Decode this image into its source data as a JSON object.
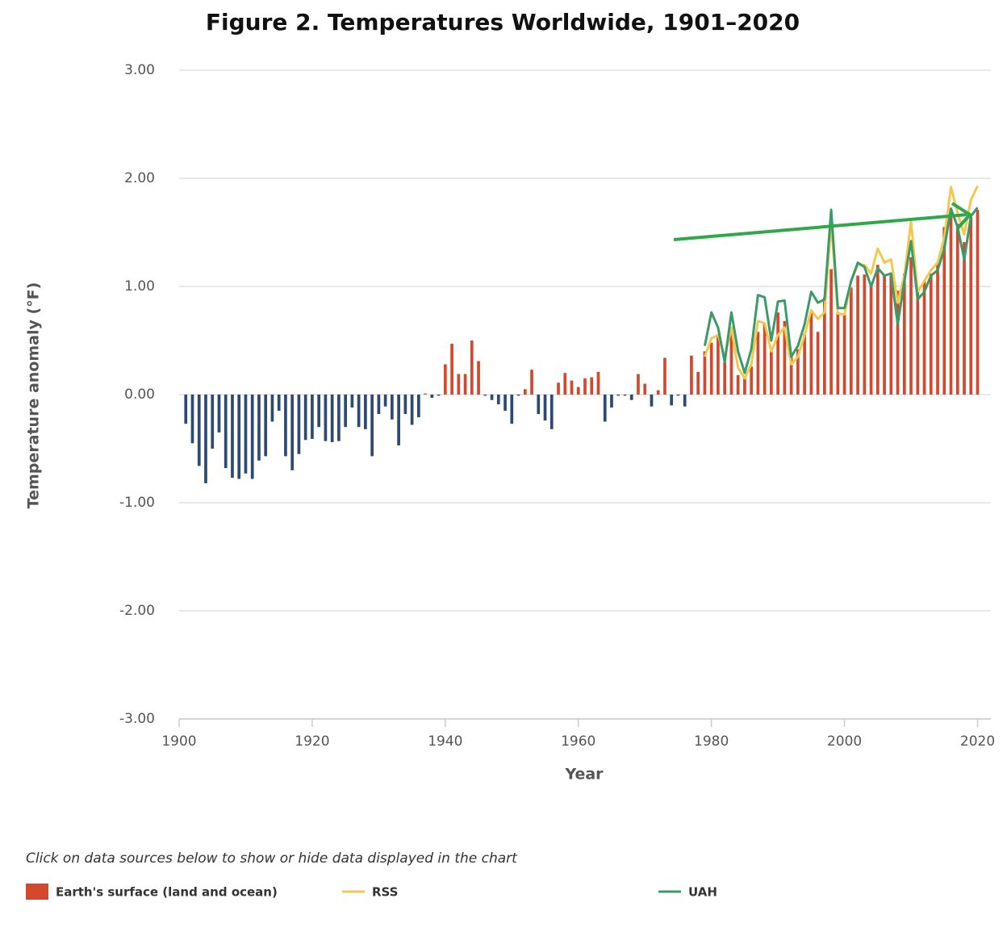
{
  "chart_data": {
    "type": "bar",
    "title": "Figure 2. Temperatures Worldwide, 1901–2020",
    "x_label": "Year",
    "y_label": "Temperature anomaly (°F)",
    "note": "Click on data sources below to show or hide data displayed in the chart",
    "xlim": [
      1900,
      2022
    ],
    "xticks": [
      1900,
      1920,
      1940,
      1960,
      1980,
      2000,
      2020
    ],
    "ylim": [
      -3,
      3
    ],
    "yticks": [
      {
        "value": -3,
        "label": "-3.00"
      },
      {
        "value": -2,
        "label": "-2.00"
      },
      {
        "value": -1,
        "label": "-1.00"
      },
      {
        "value": 0,
        "label": "0.00"
      },
      {
        "value": 1,
        "label": "1.00"
      },
      {
        "value": 2,
        "label": "2.00"
      },
      {
        "value": 3,
        "label": "3.00"
      }
    ],
    "grid": true,
    "legend": "bottom",
    "series": [
      {
        "name": "Earth's surface (land and ocean)",
        "type": "bar",
        "color": "#d4492e",
        "negative_color": "#2c4a73",
        "x": [
          1901,
          1902,
          1903,
          1904,
          1905,
          1906,
          1907,
          1908,
          1909,
          1910,
          1911,
          1912,
          1913,
          1914,
          1915,
          1916,
          1917,
          1918,
          1919,
          1920,
          1921,
          1922,
          1923,
          1924,
          1925,
          1926,
          1927,
          1928,
          1929,
          1930,
          1931,
          1932,
          1933,
          1934,
          1935,
          1936,
          1937,
          1938,
          1939,
          1940,
          1941,
          1942,
          1943,
          1944,
          1945,
          1946,
          1947,
          1948,
          1949,
          1950,
          1951,
          1952,
          1953,
          1954,
          1955,
          1956,
          1957,
          1958,
          1959,
          1960,
          1961,
          1962,
          1963,
          1964,
          1965,
          1966,
          1967,
          1968,
          1969,
          1970,
          1971,
          1972,
          1973,
          1974,
          1975,
          1976,
          1977,
          1978,
          1979,
          1980,
          1981,
          1982,
          1983,
          1984,
          1985,
          1986,
          1987,
          1988,
          1989,
          1990,
          1991,
          1992,
          1993,
          1994,
          1995,
          1996,
          1997,
          1998,
          1999,
          2000,
          2001,
          2002,
          2003,
          2004,
          2005,
          2006,
          2007,
          2008,
          2009,
          2010,
          2011,
          2012,
          2013,
          2014,
          2015,
          2016,
          2017,
          2018,
          2019,
          2020
        ],
        "values": [
          -0.27,
          -0.45,
          -0.66,
          -0.82,
          -0.5,
          -0.35,
          -0.68,
          -0.77,
          -0.78,
          -0.73,
          -0.78,
          -0.61,
          -0.57,
          -0.25,
          -0.15,
          -0.57,
          -0.7,
          -0.55,
          -0.42,
          -0.41,
          -0.3,
          -0.43,
          -0.44,
          -0.43,
          -0.3,
          -0.12,
          -0.3,
          -0.32,
          -0.57,
          -0.18,
          -0.11,
          -0.23,
          -0.47,
          -0.18,
          -0.28,
          -0.21,
          0.01,
          -0.03,
          -0.01,
          0.28,
          0.47,
          0.19,
          0.19,
          0.5,
          0.31,
          -0.01,
          -0.05,
          -0.09,
          -0.15,
          -0.27,
          -0.01,
          0.05,
          0.23,
          -0.18,
          -0.24,
          -0.32,
          0.11,
          0.2,
          0.13,
          0.07,
          0.15,
          0.16,
          0.21,
          -0.25,
          -0.12,
          -0.01,
          -0.01,
          -0.05,
          0.19,
          0.1,
          -0.11,
          0.04,
          0.34,
          -0.1,
          -0.01,
          -0.11,
          0.36,
          0.21,
          0.4,
          0.48,
          0.55,
          0.3,
          0.58,
          0.18,
          0.16,
          0.26,
          0.58,
          0.66,
          0.4,
          0.76,
          0.68,
          0.38,
          0.42,
          0.56,
          0.76,
          0.58,
          0.9,
          1.16,
          0.76,
          0.75,
          0.99,
          1.1,
          1.11,
          1.01,
          1.2,
          1.1,
          1.1,
          0.96,
          1.12,
          1.27,
          0.97,
          1.05,
          1.12,
          1.22,
          1.55,
          1.72,
          1.58,
          1.41,
          1.64,
          1.71
        ]
      },
      {
        "name": "RSS",
        "type": "line",
        "color": "#f2c94c",
        "x": [
          1979,
          1980,
          1981,
          1982,
          1983,
          1984,
          1985,
          1986,
          1987,
          1988,
          1989,
          1990,
          1991,
          1992,
          1993,
          1994,
          1995,
          1996,
          1997,
          1998,
          1999,
          2000,
          2001,
          2002,
          2003,
          2004,
          2005,
          2006,
          2007,
          2008,
          2009,
          2010,
          2011,
          2012,
          2013,
          2014,
          2015,
          2016,
          2017,
          2018,
          2019,
          2020
        ],
        "values": [
          0.35,
          0.52,
          0.55,
          0.35,
          0.62,
          0.25,
          0.15,
          0.28,
          0.68,
          0.66,
          0.4,
          0.55,
          0.62,
          0.28,
          0.35,
          0.55,
          0.78,
          0.7,
          0.76,
          1.6,
          0.75,
          0.74,
          1.05,
          1.2,
          1.2,
          1.12,
          1.35,
          1.22,
          1.25,
          0.85,
          1.1,
          1.6,
          0.95,
          1.05,
          1.15,
          1.22,
          1.45,
          1.92,
          1.68,
          1.48,
          1.8,
          1.93
        ]
      },
      {
        "name": "UAH",
        "type": "line",
        "color": "#3a9a6a",
        "x": [
          1979,
          1980,
          1981,
          1982,
          1983,
          1984,
          1985,
          1986,
          1987,
          1988,
          1989,
          1990,
          1991,
          1992,
          1993,
          1994,
          1995,
          1996,
          1997,
          1998,
          1999,
          2000,
          2001,
          2002,
          2003,
          2004,
          2005,
          2006,
          2007,
          2008,
          2009,
          2010,
          2011,
          2012,
          2013,
          2014,
          2015,
          2016,
          2017,
          2018,
          2019,
          2020
        ],
        "values": [
          0.45,
          0.76,
          0.62,
          0.3,
          0.76,
          0.4,
          0.2,
          0.42,
          0.92,
          0.9,
          0.5,
          0.86,
          0.87,
          0.35,
          0.45,
          0.65,
          0.95,
          0.85,
          0.88,
          1.71,
          0.8,
          0.8,
          1.05,
          1.22,
          1.18,
          1.0,
          1.17,
          1.1,
          1.12,
          0.65,
          1.05,
          1.42,
          0.88,
          0.95,
          1.1,
          1.15,
          1.35,
          1.72,
          1.55,
          1.25,
          1.65,
          1.73
        ]
      }
    ]
  }
}
